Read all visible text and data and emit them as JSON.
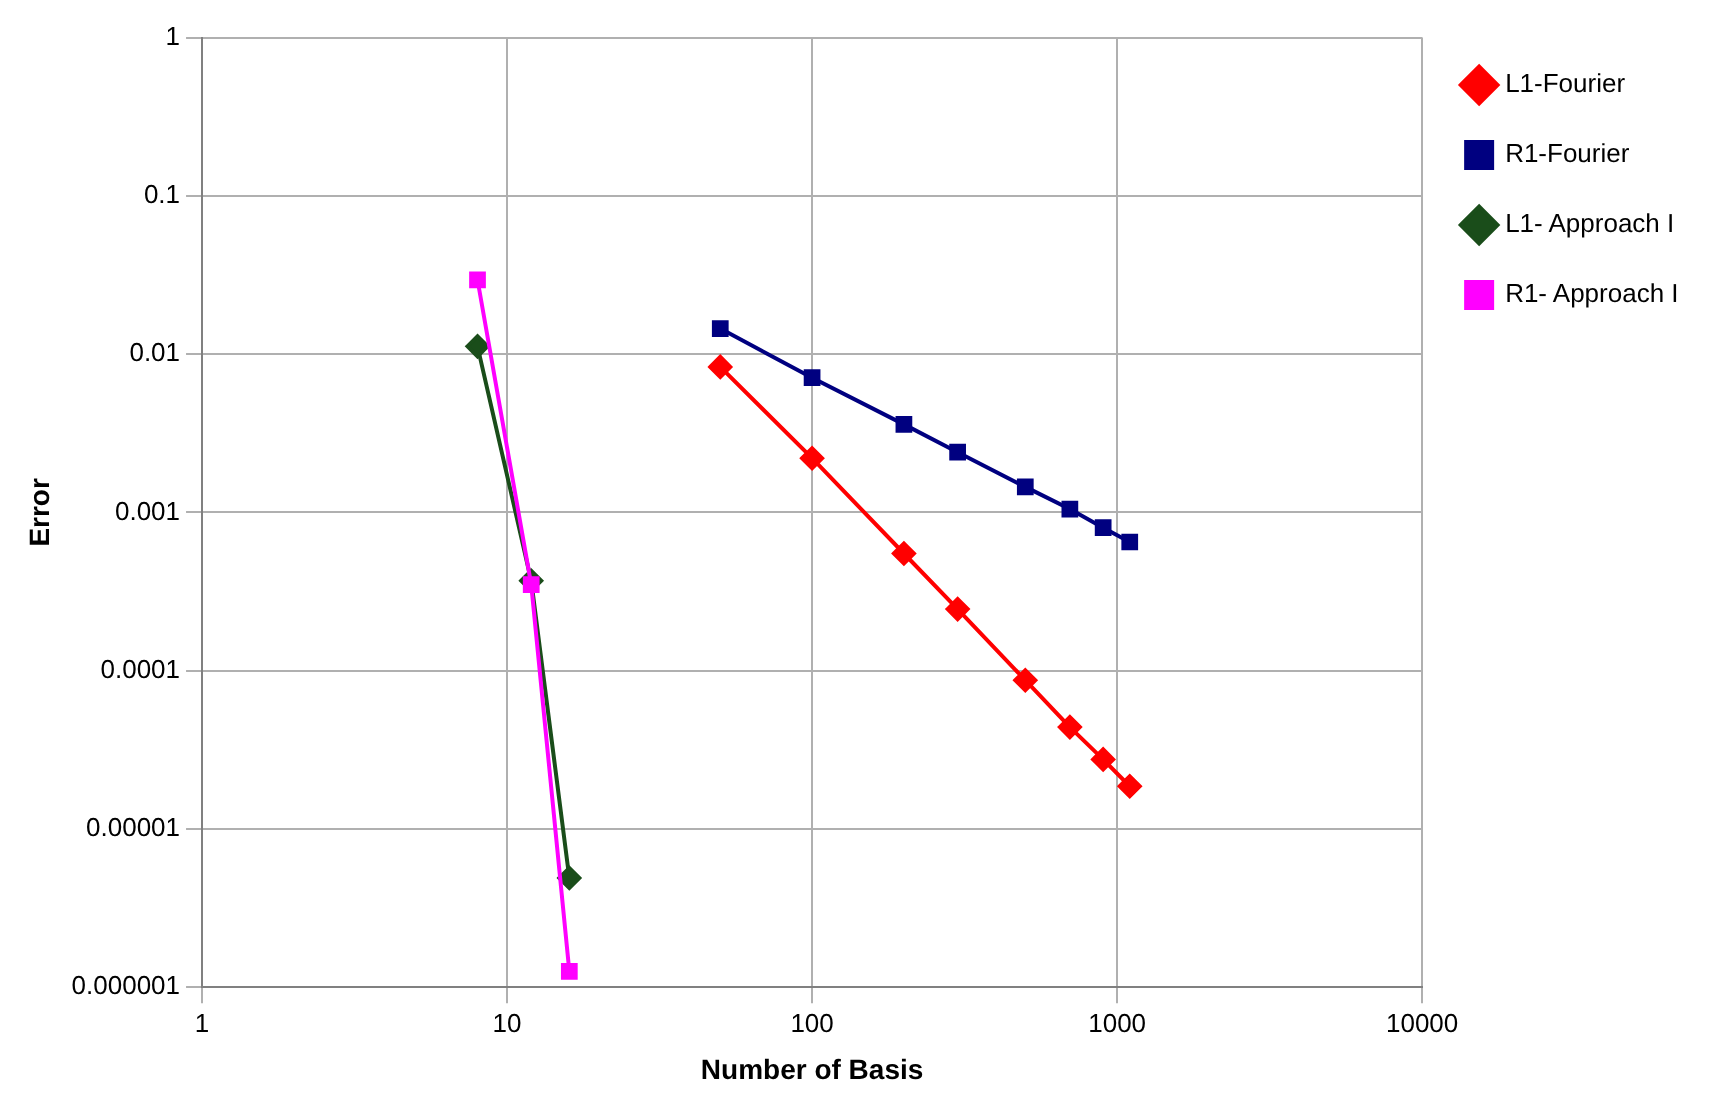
{
  "chart_data": {
    "type": "line",
    "xlabel": "Number of Basis",
    "ylabel": "Error",
    "log": "xy",
    "grid": true,
    "legend": "top right",
    "xlim": [
      1,
      10000
    ],
    "xticks": [
      1,
      10,
      100,
      1000,
      10000
    ],
    "ylim": [
      1e-06,
      1
    ],
    "yticks": [
      1,
      0.1,
      0.01,
      0.001,
      0.0001,
      {
        "value": 1e-05,
        "label": "0.00001"
      },
      {
        "value": 1e-06,
        "label": "0.000001"
      }
    ],
    "series": [
      {
        "name": "L1-Fourier",
        "color": "#ff0000",
        "marker": "diamond",
        "x": [
          50,
          100,
          200,
          300,
          500,
          700,
          900,
          1100
        ],
        "values": [
          0.0083,
          0.0022,
          0.00055,
          0.000245,
          8.7e-05,
          4.4e-05,
          2.75e-05,
          1.86e-05
        ]
      },
      {
        "name": "R1-Fourier",
        "color": "#000080",
        "marker": "square",
        "x": [
          50,
          100,
          200,
          300,
          500,
          700,
          900,
          1100
        ],
        "values": [
          0.0145,
          0.0071,
          0.0036,
          0.0024,
          0.00145,
          0.00105,
          0.0008,
          0.00065
        ]
      },
      {
        "name": "L1- Approach I",
        "color": "#1a4d1a",
        "marker": "diamond",
        "x": [
          8,
          12,
          16
        ],
        "values": [
          0.0112,
          0.00037,
          4.9e-06
        ]
      },
      {
        "name": "R1- Approach I",
        "color": "#ff00ff",
        "marker": "square",
        "x": [
          8,
          12,
          16
        ],
        "values": [
          0.0295,
          0.00035,
          1.26e-06
        ]
      }
    ]
  }
}
